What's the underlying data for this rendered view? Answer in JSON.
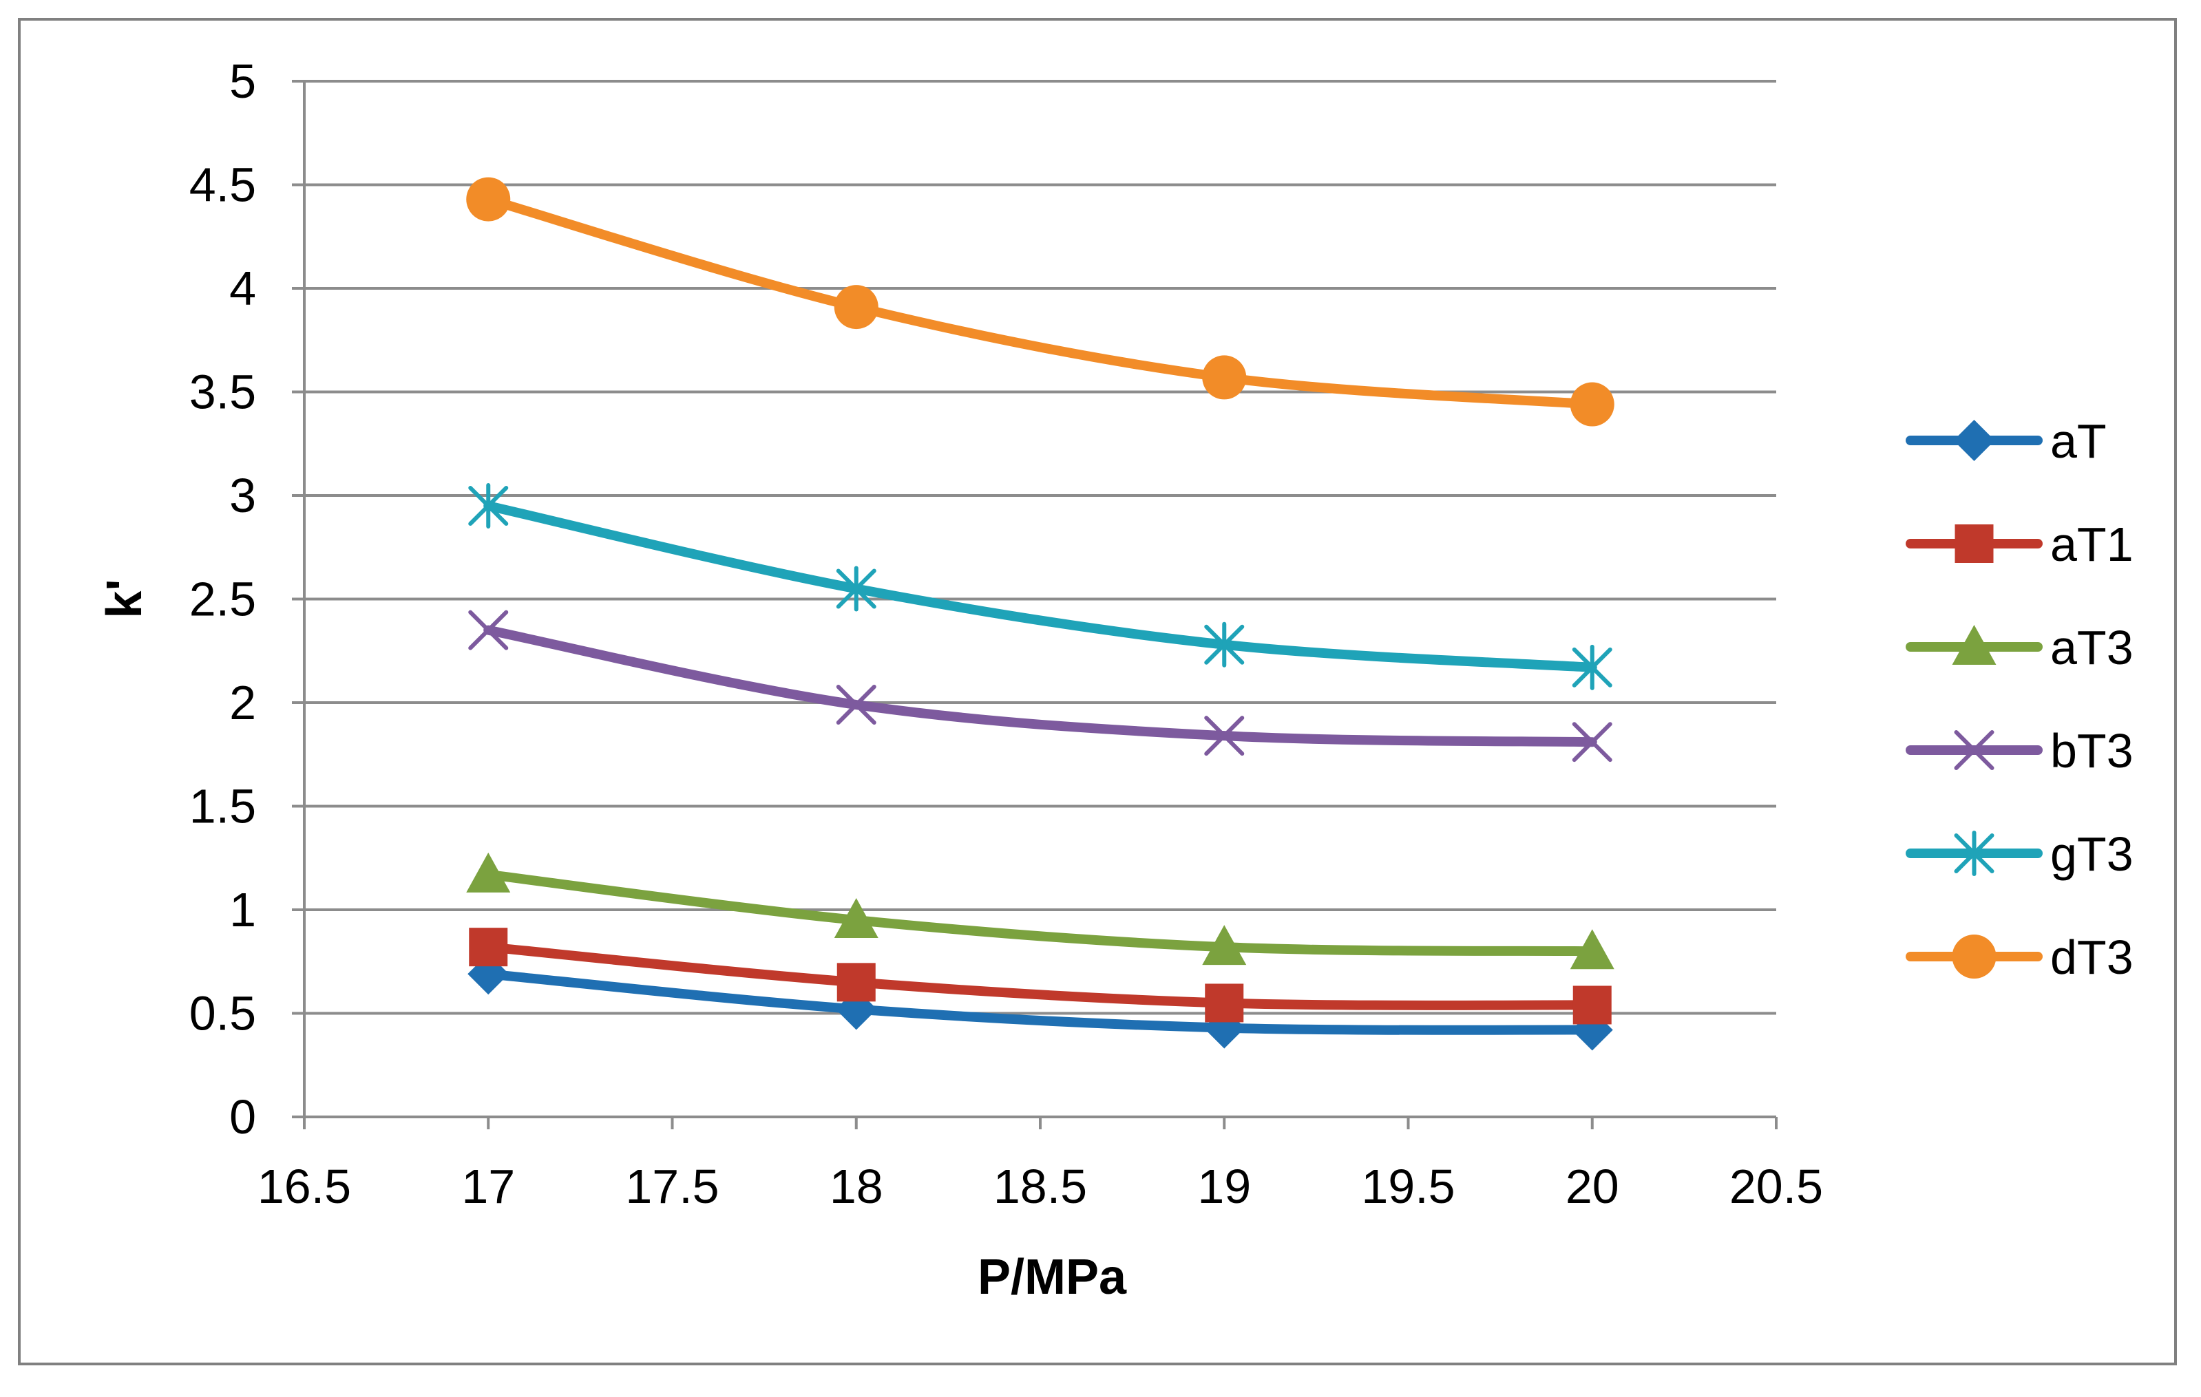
{
  "chart_data": {
    "type": "line",
    "title": "",
    "xlabel": "P/MPa",
    "ylabel": "k'",
    "xlim": [
      16.5,
      20.5
    ],
    "ylim": [
      0,
      5
    ],
    "xticks": [
      16.5,
      17,
      17.5,
      18,
      18.5,
      19,
      19.5,
      20,
      20.5
    ],
    "yticks": [
      0,
      0.5,
      1,
      1.5,
      2,
      2.5,
      3,
      3.5,
      4,
      4.5,
      5
    ],
    "grid": "horizontal",
    "legend_position": "right",
    "x": [
      17,
      18,
      19,
      20
    ],
    "series": [
      {
        "name": "aT",
        "values": [
          0.69,
          0.52,
          0.43,
          0.42
        ],
        "color": "#1F6FB2",
        "marker": "diamond"
      },
      {
        "name": "aT1",
        "values": [
          0.82,
          0.65,
          0.55,
          0.54
        ],
        "color": "#C0392B",
        "marker": "square"
      },
      {
        "name": "aT3",
        "values": [
          1.17,
          0.95,
          0.82,
          0.8
        ],
        "color": "#7BA23F",
        "marker": "triangle"
      },
      {
        "name": "bT3",
        "values": [
          2.35,
          1.99,
          1.84,
          1.81
        ],
        "color": "#7D5A9E",
        "marker": "x"
      },
      {
        "name": "gT3",
        "values": [
          2.95,
          2.55,
          2.28,
          2.17
        ],
        "color": "#1FA3B8",
        "marker": "star"
      },
      {
        "name": "dT3",
        "values": [
          4.43,
          3.91,
          3.57,
          3.44
        ],
        "color": "#F28C28",
        "marker": "circle"
      }
    ]
  }
}
